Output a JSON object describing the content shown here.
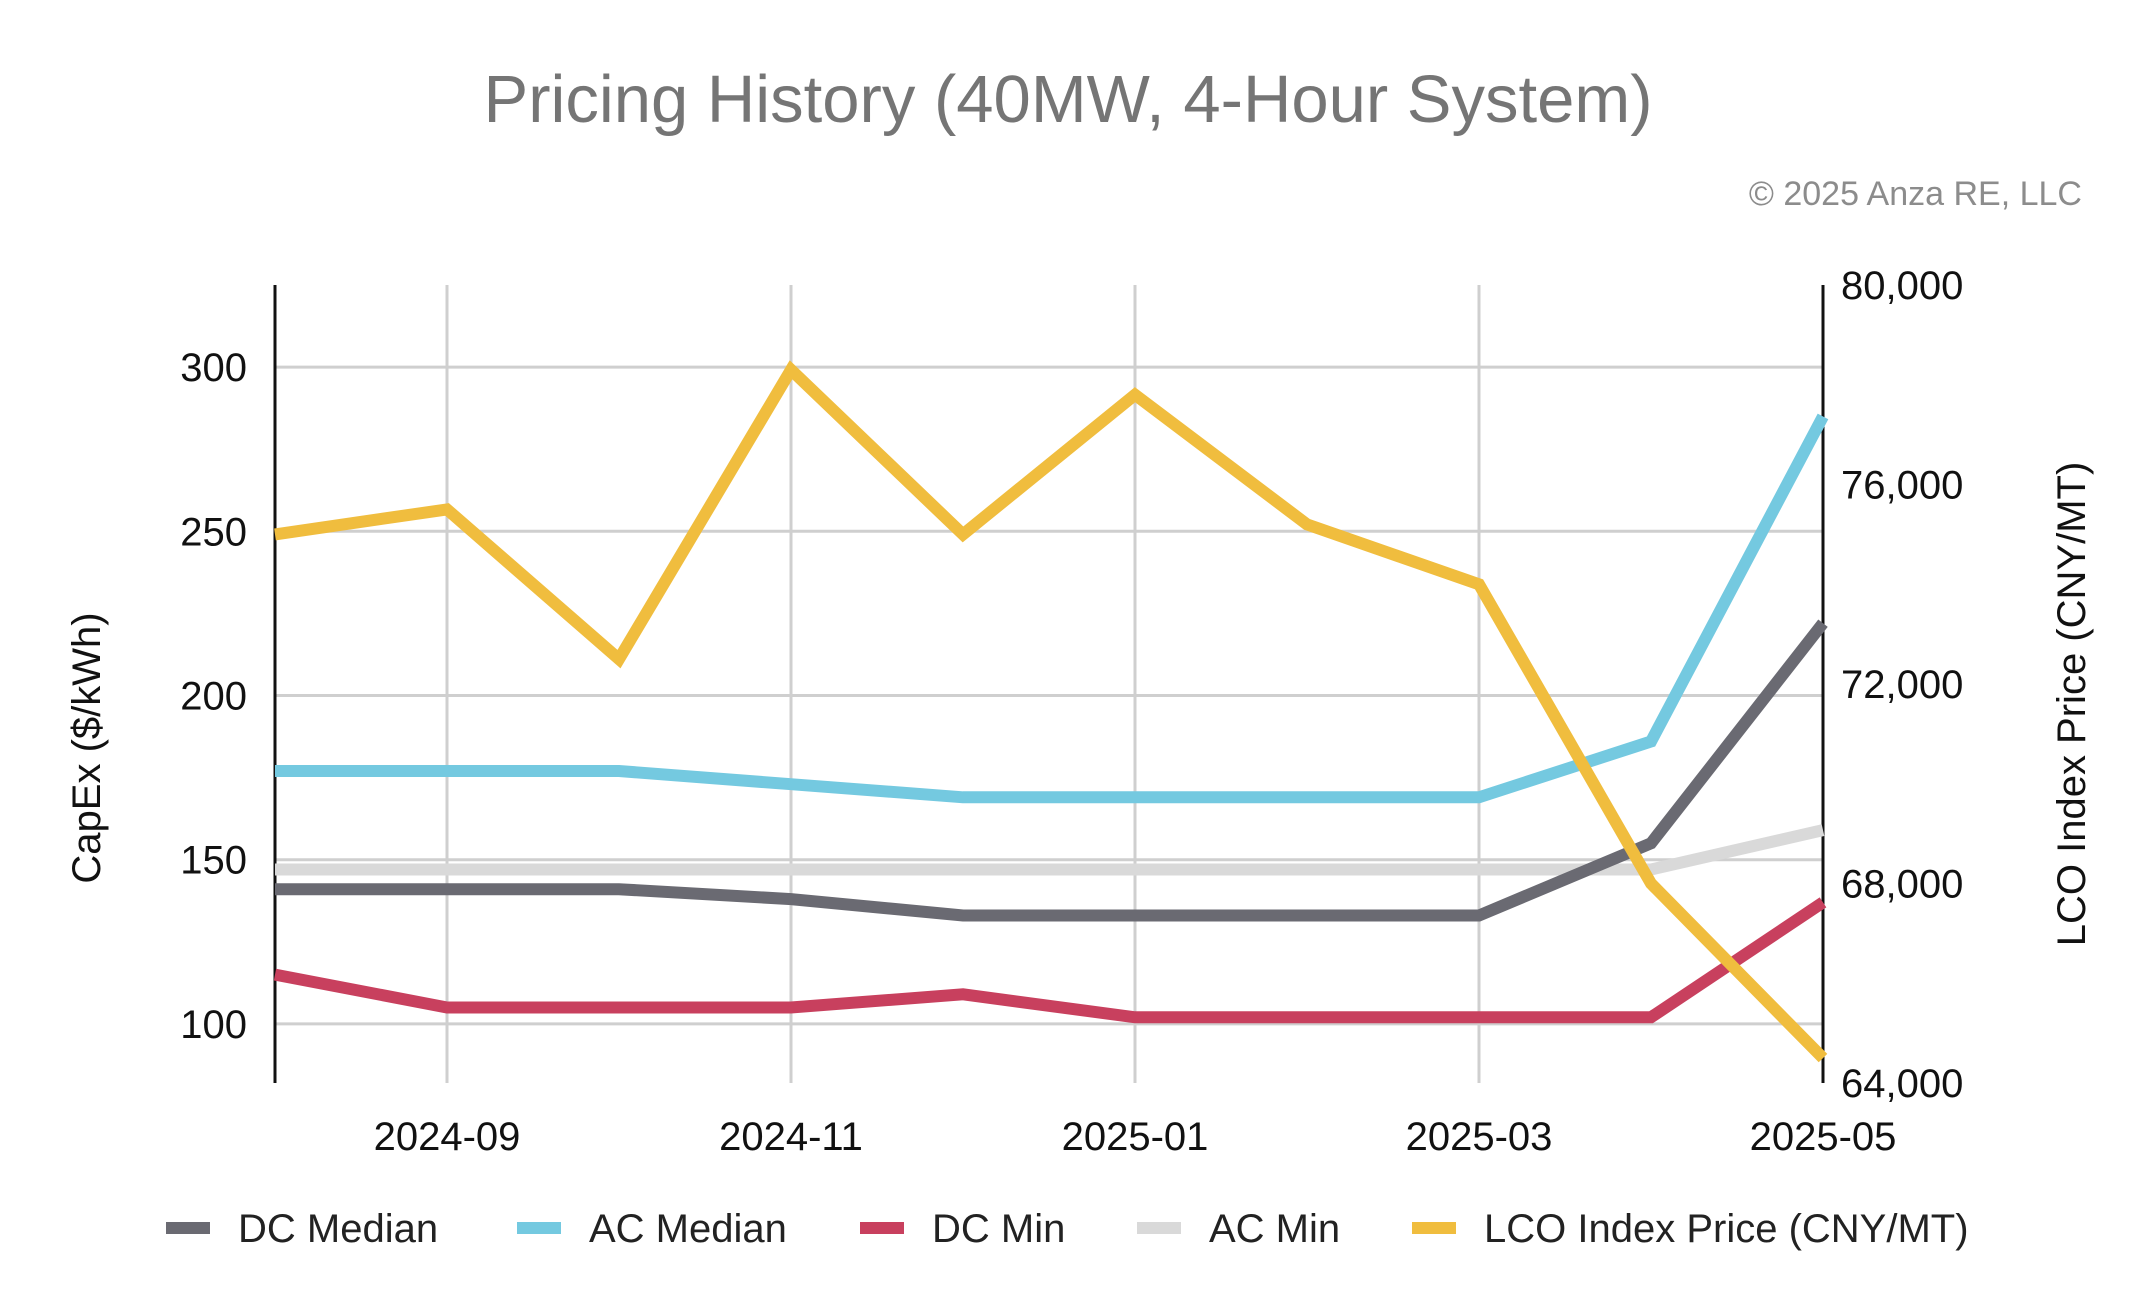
{
  "chart_data": {
    "type": "line",
    "title": "Pricing History (40MW, 4-Hour System)",
    "copyright": "© 2025 Anza RE, LLC",
    "x": [
      "2024-08",
      "2024-09",
      "2024-10",
      "2024-11",
      "2024-12",
      "2025-01",
      "2025-02",
      "2025-03",
      "2025-04",
      "2025-05"
    ],
    "x_tick_labels": [
      "2024-09",
      "2024-11",
      "2025-01",
      "2025-03",
      "2025-05"
    ],
    "ylabel": "CapEx ($/kWh)",
    "ylim": [
      82,
      325
    ],
    "y_ticks": [
      100,
      150,
      200,
      250,
      300
    ],
    "y_tick_labels": [
      "100",
      "150",
      "200",
      "250",
      "300"
    ],
    "y2label": "LCO Index Price (CNY/MT)",
    "y2lim": [
      64000,
      80000
    ],
    "y2_ticks": [
      64000,
      68000,
      72000,
      76000,
      80000
    ],
    "y2_tick_labels": [
      "64,000",
      "68,000",
      "72,000",
      "76,000",
      "80,000"
    ],
    "grid": true,
    "legend_position": "bottom",
    "series": [
      {
        "name": "DC Median",
        "axis": "left",
        "color": "#6a6a72",
        "values": [
          141,
          141,
          141,
          138,
          133,
          133,
          133,
          133,
          155,
          222
        ]
      },
      {
        "name": "AC Median",
        "axis": "left",
        "color": "#74c9e0",
        "values": [
          177,
          177,
          177,
          173,
          169,
          169,
          169,
          169,
          186,
          285
        ]
      },
      {
        "name": "DC Min",
        "axis": "left",
        "color": "#c8405e",
        "values": [
          115,
          105,
          105,
          105,
          109,
          102,
          102,
          102,
          102,
          137
        ]
      },
      {
        "name": "AC Min",
        "axis": "left",
        "color": "#d9d9d9",
        "values": [
          147,
          147,
          147,
          147,
          147,
          147,
          147,
          147,
          147,
          159
        ]
      },
      {
        "name": "LCO Index Price (CNY/MT)",
        "axis": "right",
        "color": "#f0bd3e",
        "values": [
          75000,
          75500,
          72500,
          78300,
          75000,
          77800,
          75200,
          74000,
          68000,
          64500
        ]
      }
    ]
  }
}
